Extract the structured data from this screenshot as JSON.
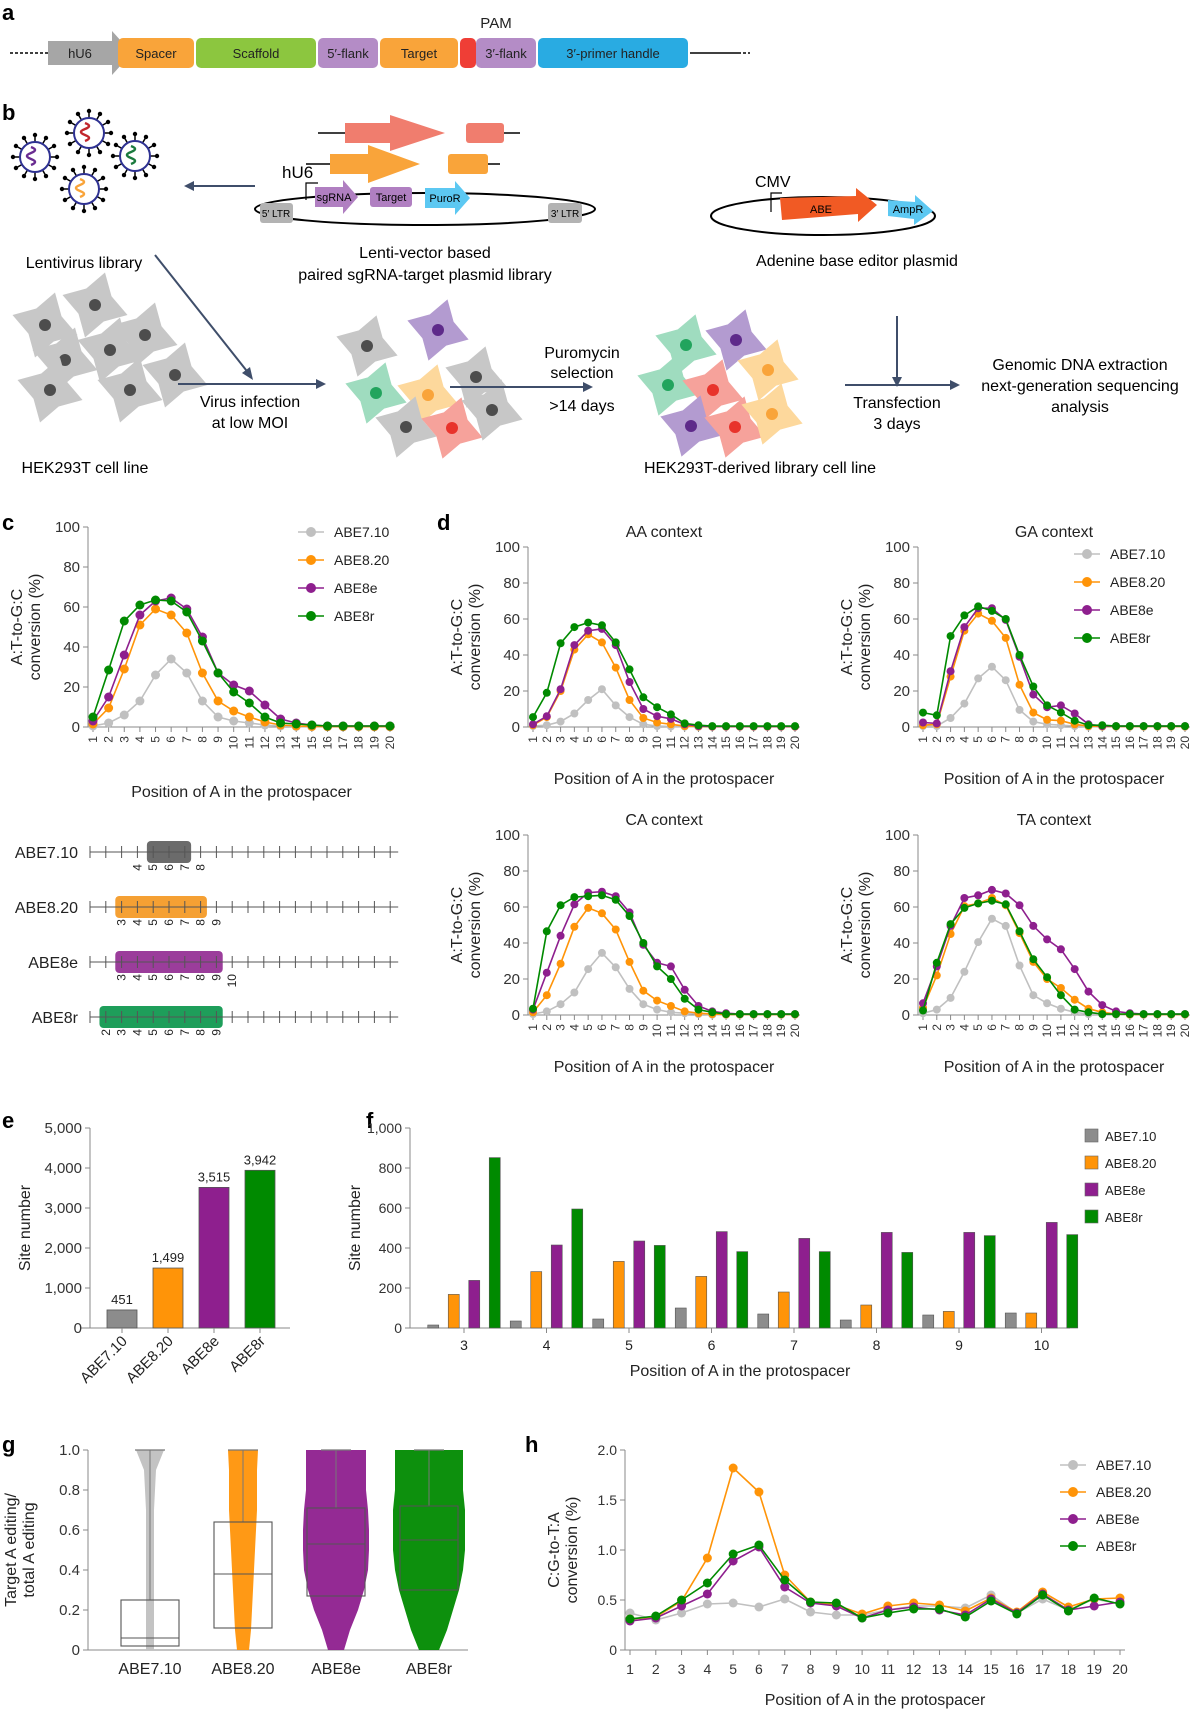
{
  "panel_labels": [
    "a",
    "b",
    "c",
    "d",
    "e",
    "f",
    "g",
    "h"
  ],
  "panel_a": {
    "pam_label": "PAM",
    "segments": [
      {
        "label": "hU6",
        "color": "#a6a6a6",
        "shape": "arrow"
      },
      {
        "label": "Spacer",
        "color": "#f9a43a"
      },
      {
        "label": "Scaffold",
        "color": "#8cc63f"
      },
      {
        "label": "5′-flank",
        "color": "#b48cc6"
      },
      {
        "label": "Target",
        "color": "#f9a43a"
      },
      {
        "label": "",
        "color": "#ef3e36"
      },
      {
        "label": "3′-flank",
        "color": "#b48cc6"
      },
      {
        "label": "3′-primer handle",
        "color": "#29abe2"
      }
    ]
  },
  "panel_b": {
    "lentivirus_label": "Lentivirus library",
    "lenti_vector_label_1": "Lenti-vector based",
    "lenti_vector_label_2": "paired sgRNA-target plasmid library",
    "hu6": "hU6",
    "ltr5": "5′ LTR",
    "ltr3": "3′ LTR",
    "sgrna": "sgRNA",
    "target": "Target",
    "puror": "PuroR",
    "cmv": "CMV",
    "abe": "ABE",
    "ampr": "AmpR",
    "abe_plasmid_label": "Adenine base editor plasmid",
    "hek_label": "HEK293T cell line",
    "infection_1": "Virus infection",
    "infection_2": "at low MOI",
    "puro_1": "Puromycin",
    "puro_2": "selection",
    "puro_3": ">14 days",
    "library_label": "HEK293T-derived library cell line",
    "transfection_1": "Transfection",
    "transfection_2": "3 days",
    "analysis_1": "Genomic DNA extraction",
    "analysis_2": "next-generation sequencing",
    "analysis_3": "analysis"
  },
  "colors": {
    "ABE7.10": "#c0c0c0",
    "ABE8.20": "#ff9408",
    "ABE8e": "#8e1f8e",
    "ABE8r": "#008a00"
  },
  "window_labels": {
    "ABE7.10": {
      "range": [
        5,
        7
      ],
      "ticks": [
        4,
        5,
        6,
        7,
        8
      ],
      "color": "#6b6b6b"
    },
    "ABE8.20": {
      "range": [
        3,
        8
      ],
      "ticks": [
        3,
        4,
        5,
        6,
        7,
        8,
        9
      ],
      "color": "#f5a033"
    },
    "ABE8e": {
      "range": [
        3,
        9
      ],
      "ticks": [
        3,
        4,
        5,
        6,
        7,
        8,
        9,
        10
      ],
      "color": "#9b3d9b"
    },
    "ABE8r": {
      "range": [
        2,
        9
      ],
      "ticks": [
        2,
        3,
        4,
        5,
        6,
        7,
        8,
        9
      ],
      "color": "#1e9e5a"
    }
  },
  "chart_data": [
    {
      "id": "c",
      "type": "line",
      "title": "",
      "xlabel": "Position of A in the protospacer",
      "ylabel": "A:T-to-G:C conversion (%)",
      "x": [
        1,
        2,
        3,
        4,
        5,
        6,
        7,
        8,
        9,
        10,
        11,
        12,
        13,
        14,
        15,
        16,
        17,
        18,
        19,
        20
      ],
      "ylim": [
        0,
        100
      ],
      "yticks": [
        0,
        20,
        40,
        60,
        80,
        100
      ],
      "legend": "top-right",
      "series": [
        {
          "name": "ABE7.10",
          "values": [
            0.5,
            2,
            6,
            13,
            26,
            34,
            27,
            13,
            5,
            3,
            2,
            1,
            0.5,
            0.3,
            0.2,
            0.1,
            0.1,
            0.1,
            0.1,
            0.1
          ]
        },
        {
          "name": "ABE8.20",
          "values": [
            1.5,
            9.5,
            29,
            51,
            59,
            56,
            47,
            27,
            13,
            8,
            5,
            2.5,
            1,
            0.5,
            0.3,
            0.2,
            0.2,
            0.2,
            0.2,
            0.2
          ]
        },
        {
          "name": "ABE8e",
          "values": [
            3,
            15,
            36,
            56,
            63,
            64.5,
            59,
            45,
            27,
            21,
            18,
            11,
            4,
            2,
            1,
            0.5,
            0.5,
            0.5,
            0.5,
            0.5
          ]
        },
        {
          "name": "ABE8r",
          "values": [
            5,
            28.5,
            53,
            61,
            63.5,
            63,
            57.5,
            43,
            27,
            17.5,
            12,
            5,
            2,
            1.5,
            1,
            0.5,
            0.5,
            0.5,
            0.5,
            0.5
          ]
        }
      ]
    },
    {
      "id": "d-AA",
      "type": "line",
      "title": "AA context",
      "xlabel": "Position of A in the protospacer",
      "ylabel": "A:T-to-G:C conversion (%)",
      "x": [
        1,
        2,
        3,
        4,
        5,
        6,
        7,
        8,
        9,
        10,
        11,
        12,
        13,
        14,
        15,
        16,
        17,
        18,
        19,
        20
      ],
      "ylim": [
        0,
        100
      ],
      "yticks": [
        0,
        20,
        40,
        60,
        80,
        100
      ],
      "series": [
        {
          "name": "ABE7.10",
          "values": [
            0.5,
            1,
            3,
            7.5,
            15,
            21,
            12,
            5.5,
            1.5,
            0.5,
            0.3,
            0.2,
            0.1,
            0.1,
            0.1,
            0.1,
            0.1,
            0.1,
            0.1,
            0.1
          ]
        },
        {
          "name": "ABE8.20",
          "values": [
            1,
            5.5,
            20,
            43,
            51.5,
            47,
            33,
            15,
            5,
            2.5,
            1.5,
            0.5,
            0.3,
            0.2,
            0.2,
            0.2,
            0.2,
            0.2,
            0.2,
            0.2
          ]
        },
        {
          "name": "ABE8e",
          "values": [
            1.5,
            6,
            21,
            45.5,
            53.5,
            54.5,
            45.5,
            25,
            10,
            6,
            4.5,
            1.5,
            0.5,
            0.3,
            0.3,
            0.3,
            0.3,
            0.3,
            0.3,
            0.3
          ]
        },
        {
          "name": "ABE8r",
          "values": [
            5.5,
            19,
            46.5,
            55.5,
            58,
            56.5,
            47,
            32,
            16.5,
            11,
            7,
            2,
            1,
            0.5,
            0.5,
            0.5,
            0.5,
            0.5,
            0.5,
            0.5
          ]
        }
      ]
    },
    {
      "id": "d-GA",
      "type": "line",
      "title": "GA context",
      "xlabel": "Position of A in the protospacer",
      "ylabel": "A:T-to-G:C conversion (%)",
      "x": [
        1,
        2,
        3,
        4,
        5,
        6,
        7,
        8,
        9,
        10,
        11,
        12,
        13,
        14,
        15,
        16,
        17,
        18,
        19,
        20
      ],
      "ylim": [
        0,
        100
      ],
      "yticks": [
        0,
        20,
        40,
        60,
        80,
        100
      ],
      "legend": "top-right",
      "series": [
        {
          "name": "ABE7.10",
          "values": [
            0.5,
            0.5,
            5,
            13,
            27,
            33.5,
            26,
            9.5,
            3,
            1.5,
            1,
            0.5,
            0.2,
            0.1,
            0.1,
            0.1,
            0.1,
            0.1,
            0.1,
            0.1
          ]
        },
        {
          "name": "ABE8.20",
          "values": [
            1,
            1.5,
            28,
            53.5,
            63,
            59,
            49.5,
            23.5,
            8,
            4,
            3.5,
            1.5,
            0.5,
            0.3,
            0.3,
            0.3,
            0.3,
            0.3,
            0.3,
            0.3
          ]
        },
        {
          "name": "ABE8e",
          "values": [
            2.5,
            2,
            31,
            55.5,
            66,
            66,
            59.5,
            39,
            18,
            11,
            12,
            7.5,
            1.5,
            0.5,
            0.5,
            0.5,
            0.5,
            0.5,
            0.5,
            0.5
          ]
        },
        {
          "name": "ABE8r",
          "values": [
            8,
            6.5,
            50.5,
            62,
            67,
            64.5,
            60,
            40,
            22.5,
            12,
            8,
            3.5,
            1,
            1,
            0.5,
            0.5,
            0.5,
            0.5,
            0.5,
            0.5
          ]
        }
      ]
    },
    {
      "id": "d-CA",
      "type": "line",
      "title": "CA context",
      "xlabel": "Position of A in the protospacer",
      "ylabel": "A:T-to-G:C conversion (%)",
      "x": [
        1,
        2,
        3,
        4,
        5,
        6,
        7,
        8,
        9,
        10,
        11,
        12,
        13,
        14,
        15,
        16,
        17,
        18,
        19,
        20
      ],
      "ylim": [
        0,
        100
      ],
      "yticks": [
        0,
        20,
        40,
        60,
        80,
        100
      ],
      "series": [
        {
          "name": "ABE7.10",
          "values": [
            0.5,
            2,
            6,
            12.5,
            25.5,
            34.5,
            26.5,
            14.5,
            6,
            3,
            1.5,
            1,
            0.5,
            0.2,
            0.1,
            0.1,
            0.1,
            0.1,
            0.1,
            0.1
          ]
        },
        {
          "name": "ABE8.20",
          "values": [
            1.5,
            11,
            28.5,
            49,
            59.5,
            56.5,
            47.5,
            29.5,
            13.5,
            8,
            5,
            2,
            1,
            0.5,
            0.3,
            0.3,
            0.3,
            0.3,
            0.3,
            0.3
          ]
        },
        {
          "name": "ABE8e",
          "values": [
            3,
            23.5,
            44,
            61.5,
            68,
            68.5,
            66,
            57,
            39,
            29,
            27,
            14,
            5,
            2,
            1,
            0.5,
            0.5,
            0.5,
            0.5,
            0.5
          ]
        },
        {
          "name": "ABE8r",
          "values": [
            3.5,
            46.5,
            61,
            65.5,
            66,
            66.5,
            64,
            55,
            40,
            27,
            20,
            9,
            3,
            1.5,
            0.5,
            0.5,
            0.5,
            0.5,
            0.5,
            0.5
          ]
        }
      ]
    },
    {
      "id": "d-TA",
      "type": "line",
      "title": "TA context",
      "xlabel": "Position of A in the protospacer",
      "ylabel": "A:T-to-G:C conversion (%)",
      "x": [
        1,
        2,
        3,
        4,
        5,
        6,
        7,
        8,
        9,
        10,
        11,
        12,
        13,
        14,
        15,
        16,
        17,
        18,
        19,
        20
      ],
      "ylim": [
        0,
        100
      ],
      "yticks": [
        0,
        20,
        40,
        60,
        80,
        100
      ],
      "series": [
        {
          "name": "ABE7.10",
          "values": [
            1,
            3,
            9.5,
            24,
            40.5,
            53.5,
            49.5,
            27.5,
            11,
            6.5,
            3.5,
            1.5,
            0.5,
            0.3,
            0.2,
            0.1,
            0.1,
            0.1,
            0.1,
            0.1
          ]
        },
        {
          "name": "ABE8.20",
          "values": [
            4,
            22,
            45,
            60.5,
            62,
            65,
            61,
            45.5,
            29.5,
            20,
            15,
            8.5,
            3.5,
            1.5,
            0.5,
            0.3,
            0.3,
            0.3,
            0.3,
            0.3
          ]
        },
        {
          "name": "ABE8e",
          "values": [
            6.5,
            27,
            49.5,
            65,
            66.5,
            69.5,
            67.5,
            61,
            49.5,
            42,
            36.5,
            25.5,
            13,
            5.5,
            2,
            1,
            0.5,
            0.5,
            0.5,
            0.5
          ]
        },
        {
          "name": "ABE8r",
          "values": [
            2.5,
            29,
            50.5,
            59.5,
            62,
            63.5,
            61.5,
            46.5,
            31,
            21,
            11,
            3,
            1.5,
            0.5,
            0.5,
            0.5,
            0.5,
            0.5,
            0.5,
            0.5
          ]
        }
      ]
    },
    {
      "id": "e",
      "type": "bar",
      "xlabel": "",
      "ylabel": "Site number",
      "categories": [
        "ABE7.10",
        "ABE8.20",
        "ABE8e",
        "ABE8r"
      ],
      "values": [
        451,
        1499,
        3515,
        3942
      ],
      "data_labels": [
        "451",
        "1,499",
        "3,515",
        "3,942"
      ],
      "ylim": [
        0,
        5000
      ],
      "yticks": [
        0,
        1000,
        2000,
        3000,
        4000,
        5000
      ],
      "ytick_labels": [
        "0",
        "1,000",
        "2,000",
        "3,000",
        "4,000",
        "5,000"
      ]
    },
    {
      "id": "f",
      "type": "bar",
      "xlabel": "Position of A in the protospacer",
      "ylabel": "Site number",
      "categories": [
        "3",
        "4",
        "5",
        "6",
        "7",
        "8",
        "9",
        "10"
      ],
      "ylim": [
        0,
        1000
      ],
      "yticks": [
        0,
        200,
        400,
        600,
        800,
        1000
      ],
      "ytick_labels": [
        "0",
        "200",
        "400",
        "600",
        "800",
        "1,000"
      ],
      "legend": "top-right",
      "series": [
        {
          "name": "ABE7.10",
          "values": [
            15,
            35,
            45,
            100,
            70,
            40,
            65,
            75
          ]
        },
        {
          "name": "ABE8.20",
          "values": [
            168,
            282,
            333,
            258,
            180,
            115,
            83,
            75
          ]
        },
        {
          "name": "ABE8e",
          "values": [
            238,
            415,
            435,
            482,
            448,
            478,
            478,
            528
          ]
        },
        {
          "name": "ABE8r",
          "values": [
            852,
            595,
            413,
            382,
            382,
            378,
            462,
            467
          ]
        }
      ]
    },
    {
      "id": "g",
      "type": "box",
      "xlabel": "",
      "ylabel": "Target A editing/ total A editing",
      "categories": [
        "ABE7.10",
        "ABE8.20",
        "ABE8e",
        "ABE8r"
      ],
      "ylim": [
        0,
        1.0
      ],
      "yticks": [
        0,
        0.2,
        0.4,
        0.6,
        0.8,
        1.0
      ],
      "ytick_labels": [
        "0",
        "0.2",
        "0.4",
        "0.6",
        "0.8",
        "1.0"
      ],
      "boxes": [
        {
          "name": "ABE7.10",
          "q1": 0.02,
          "median": 0.06,
          "q3": 0.25,
          "whisker_low": 0,
          "whisker_high": 1.0
        },
        {
          "name": "ABE8.20",
          "q1": 0.11,
          "median": 0.38,
          "q3": 0.64,
          "whisker_low": 0,
          "whisker_high": 1.0
        },
        {
          "name": "ABE8e",
          "q1": 0.27,
          "median": 0.53,
          "q3": 0.71,
          "whisker_low": 0,
          "whisker_high": 1.0
        },
        {
          "name": "ABE8r",
          "q1": 0.3,
          "median": 0.55,
          "q3": 0.72,
          "whisker_low": 0,
          "whisker_high": 1.0
        }
      ]
    },
    {
      "id": "h",
      "type": "line",
      "xlabel": "Position of A in the protospacer",
      "ylabel": "C:G-to-T:A conversion (%)",
      "x": [
        1,
        2,
        3,
        4,
        5,
        6,
        7,
        8,
        9,
        10,
        11,
        12,
        13,
        14,
        15,
        16,
        17,
        18,
        19,
        20
      ],
      "ylim": [
        0,
        2.0
      ],
      "yticks": [
        0,
        0.5,
        1.0,
        1.5,
        2.0
      ],
      "ytick_labels": [
        "0",
        "0.5",
        "1.0",
        "1.5",
        "2.0"
      ],
      "legend": "top-right",
      "series": [
        {
          "name": "ABE7.10",
          "values": [
            0.37,
            0.3,
            0.37,
            0.46,
            0.47,
            0.43,
            0.51,
            0.38,
            0.35,
            0.35,
            0.4,
            0.44,
            0.44,
            0.42,
            0.55,
            0.37,
            0.51,
            0.4,
            0.51,
            0.46
          ]
        },
        {
          "name": "ABE8.20",
          "values": [
            0.31,
            0.33,
            0.49,
            0.92,
            1.82,
            1.58,
            0.75,
            0.48,
            0.45,
            0.36,
            0.44,
            0.47,
            0.45,
            0.39,
            0.52,
            0.38,
            0.58,
            0.43,
            0.51,
            0.52
          ]
        },
        {
          "name": "ABE8e",
          "values": [
            0.29,
            0.32,
            0.44,
            0.56,
            0.89,
            1.03,
            0.63,
            0.47,
            0.44,
            0.32,
            0.4,
            0.43,
            0.4,
            0.35,
            0.51,
            0.37,
            0.56,
            0.4,
            0.44,
            0.48
          ]
        },
        {
          "name": "ABE8r",
          "values": [
            0.31,
            0.34,
            0.5,
            0.67,
            0.96,
            1.05,
            0.7,
            0.48,
            0.47,
            0.32,
            0.37,
            0.41,
            0.41,
            0.33,
            0.49,
            0.36,
            0.55,
            0.39,
            0.52,
            0.46
          ]
        }
      ]
    }
  ]
}
